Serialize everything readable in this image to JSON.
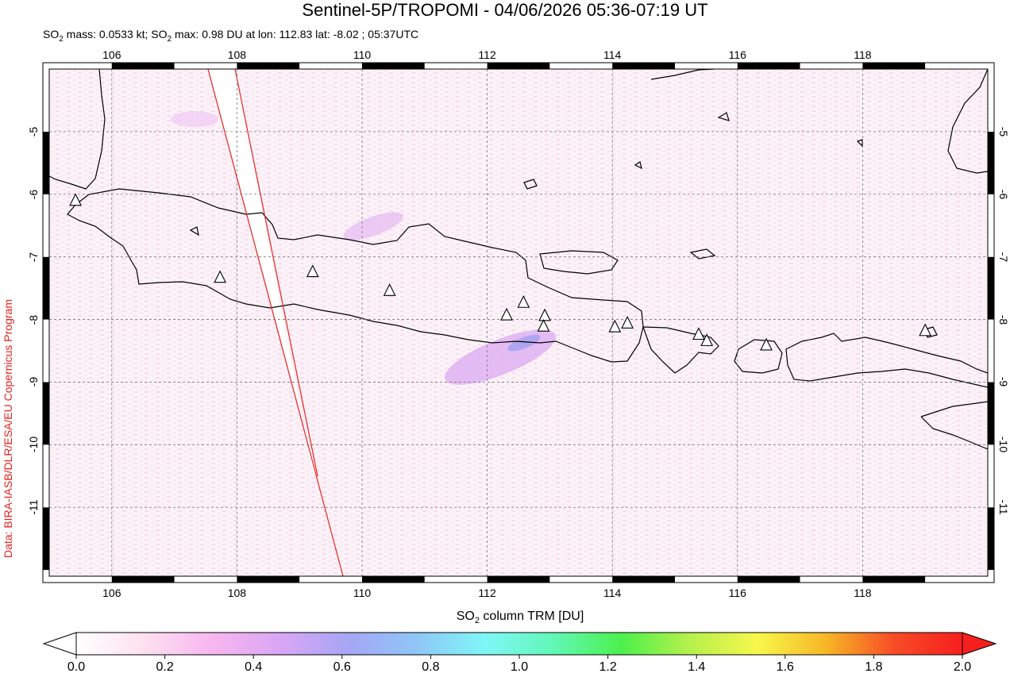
{
  "header": {
    "title": "Sentinel-5P/TROPOMI - 04/06/2026 05:36-07:19 UT",
    "subtitle_parts": {
      "a": "SO",
      "a_sub": "2",
      "b": " mass: 0.0533 kt; SO",
      "b_sub": "2",
      "c": " max: 0.98 DU at lon: 112.83 lat: -8.02 ; 05:37UTC"
    }
  },
  "credit": "Data: BIRA-IASB/DLR/ESA/EU Copernicus Program",
  "map": {
    "lon_range": [
      105,
      120
    ],
    "lat_range": [
      -12.1,
      -4.0
    ],
    "lon_ticks": [
      "106",
      "108",
      "110",
      "112",
      "114",
      "116",
      "118"
    ],
    "lat_ticks": [
      "-5",
      "-6",
      "-7",
      "-8",
      "-9",
      "-10",
      "-11"
    ],
    "grid": "dashed",
    "volcano_icon": "triangle-icon",
    "volcanoes": [
      {
        "lon": 105.42,
        "lat": -6.1
      },
      {
        "lon": 107.73,
        "lat": -7.33
      },
      {
        "lon": 109.21,
        "lat": -7.24
      },
      {
        "lon": 110.44,
        "lat": -7.54
      },
      {
        "lon": 112.31,
        "lat": -7.93
      },
      {
        "lon": 112.58,
        "lat": -7.73
      },
      {
        "lon": 112.92,
        "lat": -7.94
      },
      {
        "lon": 112.9,
        "lat": -8.11
      },
      {
        "lon": 114.04,
        "lat": -8.12
      },
      {
        "lon": 114.24,
        "lat": -8.06
      },
      {
        "lon": 115.38,
        "lat": -8.24
      },
      {
        "lon": 115.51,
        "lat": -8.34
      },
      {
        "lon": 116.46,
        "lat": -8.41
      },
      {
        "lon": 119.0,
        "lat": -8.18
      }
    ],
    "swath_edge_color": "#e8231f"
  },
  "colorbar": {
    "label_main": "SO",
    "label_sub": "2",
    "label_rest": " column TRM [DU]",
    "ticks": [
      "0.0",
      "0.2",
      "0.4",
      "0.6",
      "0.8",
      "1.0",
      "1.2",
      "1.4",
      "1.6",
      "1.8",
      "2.0"
    ],
    "range": [
      0,
      2
    ],
    "colors": [
      "#ffffff",
      "#fde0ef",
      "#f7b6f0",
      "#d9a6f5",
      "#a6a6f5",
      "#8fc6f7",
      "#7ef7f7",
      "#62f7b6",
      "#4cf04c",
      "#b6f04c",
      "#f7f74c",
      "#f7b626",
      "#f74c26",
      "#f71e1e"
    ]
  }
}
